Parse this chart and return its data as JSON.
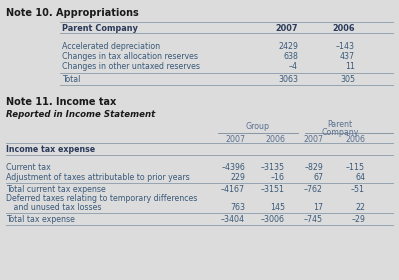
{
  "bg_color": "#dcdcdc",
  "note10_title": "Note 10. Appropriations",
  "note10_header": [
    "Parent Company",
    "2007",
    "2006"
  ],
  "note10_rows": [
    [
      "Accelerated depreciation",
      "2429",
      "–143"
    ],
    [
      "Changes in tax allocation reserves",
      "638",
      "437"
    ],
    [
      "Changes in other untaxed reserves",
      "–4",
      "11"
    ]
  ],
  "note10_total": [
    "Total",
    "3063",
    "305"
  ],
  "note11_title": "Note 11. Income tax",
  "note11_sub": "Reported in Income Statement",
  "note11_rows": [
    [
      "Current tax",
      "–4396",
      "–3135",
      "–829",
      "–115"
    ],
    [
      "Adjustment of taxes attributable to prior years",
      "229",
      "–16",
      "67",
      "64"
    ]
  ],
  "note11_subtotal": [
    "Total current tax expense",
    "–4167",
    "–3151",
    "–762",
    "–51"
  ],
  "note11_deferred_line1": "Deferred taxes relating to temporary differences",
  "note11_deferred_line2": "   and unused tax losses",
  "note11_deferred_vals": [
    "763",
    "145",
    "17",
    "22"
  ],
  "note11_total": [
    "Total tax expense",
    "–3404",
    "–3006",
    "–745",
    "–29"
  ],
  "title_color": "#1a1a1a",
  "subhead_color": "#1a1a1a",
  "header_bold_color": "#2b2b2b",
  "row_color": "#3a5a7a",
  "line_color": "#7a8a9a",
  "group_parent_color": "#5a7090"
}
